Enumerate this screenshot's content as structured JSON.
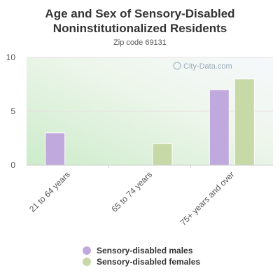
{
  "title_line1": "Age and Sex of Sensory-Disabled",
  "title_line2": "Noninstitutionalized Residents",
  "subtitle": "Zip code 69131",
  "watermark": "City-Data.com",
  "colors": {
    "males": "#c0a9dc",
    "females": "#c6d9a6",
    "grid": "#e8e0e0"
  },
  "chart_data": {
    "type": "bar",
    "title": "Age and Sex of Sensory-Disabled Noninstitutionalized Residents",
    "subtitle": "Zip code 69131",
    "categories": [
      "21 to 64 years",
      "65 to 74 years",
      "75+ years and over"
    ],
    "series": [
      {
        "name": "Sensory-disabled males",
        "values": [
          3,
          0,
          7
        ]
      },
      {
        "name": "Sensory-disabled females",
        "values": [
          0,
          2,
          8
        ]
      }
    ],
    "ylim": [
      0,
      10
    ],
    "yticks": [
      0,
      5,
      10
    ],
    "xlabel": "",
    "ylabel": "",
    "grid": true,
    "legend_position": "bottom"
  }
}
